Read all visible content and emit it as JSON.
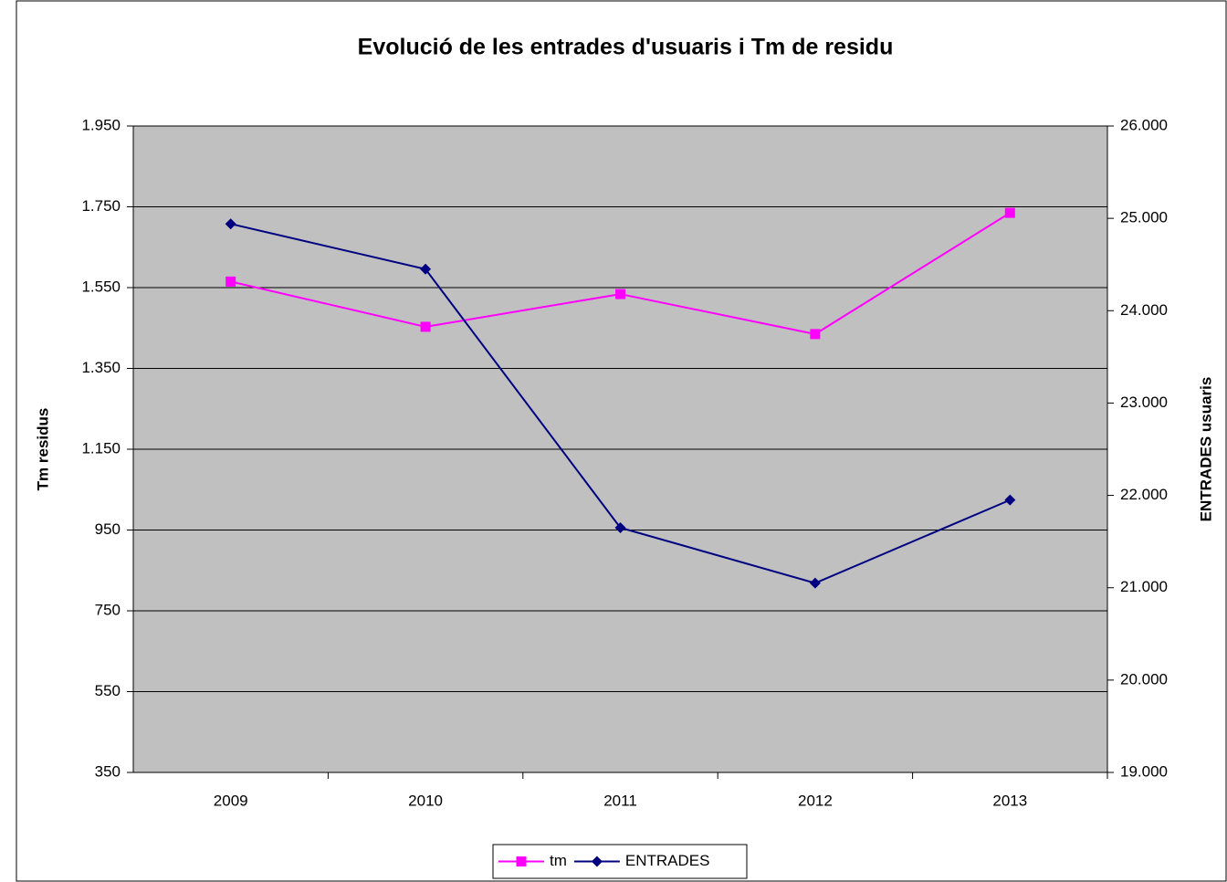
{
  "chart_data": {
    "type": "line",
    "title": "Evolució de les entrades d'usuaris i Tm de residu",
    "ylabel": "Tm residus",
    "y2label": "ENTRADES usuaris",
    "categories": [
      "2009",
      "2010",
      "2011",
      "2012",
      "2013"
    ],
    "series": [
      {
        "name": "tm",
        "color": "#ff00ff",
        "marker": "square",
        "values": [
          1565,
          1453,
          1534,
          1435,
          1735
        ]
      },
      {
        "name": "ENTRADES",
        "color": "#000080",
        "marker": "diamond",
        "axis": "y2",
        "values": [
          24940,
          24450,
          21650,
          21050,
          21950
        ]
      }
    ],
    "ylim": [
      350,
      1950
    ],
    "yticks": [
      350,
      550,
      750,
      950,
      {
        "value": 1150,
        "label": "1.150"
      },
      {
        "value": 1350,
        "label": "1.350"
      },
      {
        "value": 1550,
        "label": "1.550"
      },
      {
        "value": 1750,
        "label": "1.750"
      },
      {
        "value": 1950,
        "label": "1.950"
      }
    ],
    "y2lim": [
      19000,
      26000
    ],
    "y2ticks": [
      {
        "value": 19000,
        "label": "19.000"
      },
      {
        "value": 20000,
        "label": "20.000"
      },
      {
        "value": 21000,
        "label": "21.000"
      },
      {
        "value": 22000,
        "label": "22.000"
      },
      {
        "value": 23000,
        "label": "23.000"
      },
      {
        "value": 24000,
        "label": "24.000"
      },
      {
        "value": 25000,
        "label": "25.000"
      },
      {
        "value": 26000,
        "label": "26.000"
      }
    ],
    "grid": true,
    "plot_background": "#c0c0c0",
    "legend": "bottom"
  }
}
